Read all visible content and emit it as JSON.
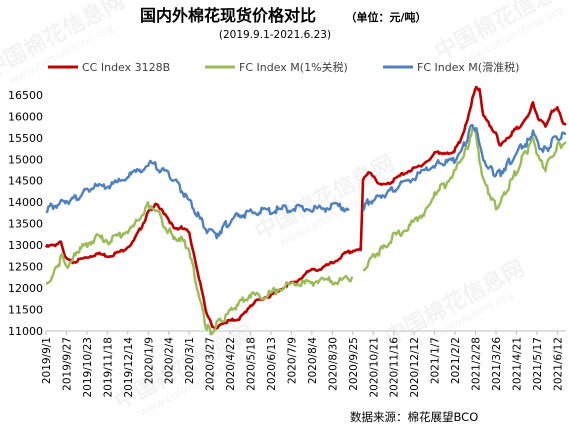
{
  "chart_data": {
    "type": "line",
    "title": "国内外棉花现货价格对比",
    "unit_note": "（单位：元/吨）",
    "subtitle": "(2019.9.1-2021.6.23)",
    "source": "数据来源：棉花展望BCO",
    "watermark": "中国棉花信息网",
    "watermark_url": "www.cottonchina.org",
    "ylim": [
      11000,
      16800
    ],
    "yticks": [
      11000,
      11500,
      12000,
      12500,
      13000,
      13500,
      14000,
      14500,
      15000,
      15500,
      16000,
      16500
    ],
    "x_range": [
      "2019-09-01",
      "2021-06-23"
    ],
    "xticks": [
      "2019/9/1",
      "2019/9/27",
      "2019/10/23",
      "2019/11/18",
      "2019/12/14",
      "2020/1/9",
      "2020/2/4",
      "2020/3/1",
      "2020/3/27",
      "2020/4/22",
      "2020/5/18",
      "2020/6/13",
      "2020/7/9",
      "2020/8/4",
      "2020/8/30",
      "2020/9/25",
      "2020/10/21",
      "2020/11/16",
      "2020/12/12",
      "2021/1/7",
      "2021/2/2",
      "2021/2/28",
      "2021/3/26",
      "2021/4/21",
      "2021/5/17",
      "2021/6/12"
    ],
    "series": [
      {
        "name": "CC Index 3128B",
        "color": "#c00000",
        "points": [
          [
            "2019-09-01",
            12950
          ],
          [
            "2019-09-10",
            13000
          ],
          [
            "2019-09-20",
            13050
          ],
          [
            "2019-09-25",
            12700
          ],
          [
            "2019-10-05",
            12600
          ],
          [
            "2019-10-20",
            12700
          ],
          [
            "2019-11-05",
            12800
          ],
          [
            "2019-11-20",
            12750
          ],
          [
            "2019-12-05",
            12850
          ],
          [
            "2019-12-20",
            13050
          ],
          [
            "2020-01-01",
            13450
          ],
          [
            "2020-01-10",
            13800
          ],
          [
            "2020-01-18",
            13950
          ],
          [
            "2020-02-01",
            13700
          ],
          [
            "2020-02-10",
            13400
          ],
          [
            "2020-02-20",
            13400
          ],
          [
            "2020-03-01",
            13300
          ],
          [
            "2020-03-08",
            12700
          ],
          [
            "2020-03-15",
            12100
          ],
          [
            "2020-03-22",
            11500
          ],
          [
            "2020-03-29",
            11150
          ],
          [
            "2020-04-05",
            11050
          ],
          [
            "2020-04-15",
            11200
          ],
          [
            "2020-04-25",
            11250
          ],
          [
            "2020-05-05",
            11300
          ],
          [
            "2020-05-18",
            11600
          ],
          [
            "2020-06-01",
            11750
          ],
          [
            "2020-06-15",
            11850
          ],
          [
            "2020-07-01",
            12050
          ],
          [
            "2020-07-15",
            12150
          ],
          [
            "2020-08-01",
            12400
          ],
          [
            "2020-08-15",
            12450
          ],
          [
            "2020-09-01",
            12600
          ],
          [
            "2020-09-15",
            12800
          ],
          [
            "2020-09-30",
            12900
          ],
          [
            "2020-10-05",
            12900
          ],
          [
            "2020-10-08",
            14500
          ],
          [
            "2020-10-15",
            14700
          ],
          [
            "2020-10-25",
            14500
          ],
          [
            "2020-11-05",
            14400
          ],
          [
            "2020-11-15",
            14500
          ],
          [
            "2020-12-01",
            14700
          ],
          [
            "2020-12-15",
            14800
          ],
          [
            "2021-01-01",
            15000
          ],
          [
            "2021-01-10",
            15200
          ],
          [
            "2021-01-20",
            15100
          ],
          [
            "2021-02-01",
            15200
          ],
          [
            "2021-02-08",
            15400
          ],
          [
            "2021-02-18",
            15900
          ],
          [
            "2021-02-24",
            16400
          ],
          [
            "2021-03-01",
            16700
          ],
          [
            "2021-03-05",
            16600
          ],
          [
            "2021-03-10",
            16000
          ],
          [
            "2021-03-18",
            15800
          ],
          [
            "2021-03-26",
            15600
          ],
          [
            "2021-04-01",
            15300
          ],
          [
            "2021-04-10",
            15500
          ],
          [
            "2021-04-20",
            15700
          ],
          [
            "2021-04-28",
            15800
          ],
          [
            "2021-05-05",
            16000
          ],
          [
            "2021-05-12",
            16300
          ],
          [
            "2021-05-20",
            15900
          ],
          [
            "2021-05-28",
            15800
          ],
          [
            "2021-06-05",
            16100
          ],
          [
            "2021-06-12",
            16200
          ],
          [
            "2021-06-18",
            15900
          ],
          [
            "2021-06-23",
            15800
          ]
        ]
      },
      {
        "name": "FC Index M(1%关税)",
        "color": "#9bbb59",
        "segments": [
          [
            [
              "2019-09-01",
              12100
            ],
            [
              "2019-09-10",
              12300
            ],
            [
              "2019-09-15",
              12500
            ],
            [
              "2019-09-22",
              12750
            ],
            [
              "2019-09-30",
              12450
            ],
            [
              "2019-10-10",
              12850
            ],
            [
              "2019-10-22",
              13000
            ],
            [
              "2019-11-05",
              13200
            ],
            [
              "2019-11-20",
              13100
            ],
            [
              "2019-12-05",
              13250
            ],
            [
              "2019-12-20",
              13400
            ],
            [
              "2020-01-01",
              13700
            ],
            [
              "2020-01-10",
              13950
            ],
            [
              "2020-01-20",
              13800
            ],
            [
              "2020-02-01",
              13400
            ],
            [
              "2020-02-10",
              13200
            ],
            [
              "2020-02-20",
              13150
            ],
            [
              "2020-03-01",
              12900
            ],
            [
              "2020-03-08",
              12300
            ],
            [
              "2020-03-15",
              11700
            ],
            [
              "2020-03-22",
              11100
            ],
            [
              "2020-03-29",
              11000
            ],
            [
              "2020-04-05",
              11150
            ],
            [
              "2020-04-15",
              11300
            ],
            [
              "2020-04-25",
              11500
            ],
            [
              "2020-05-05",
              11700
            ],
            [
              "2020-05-18",
              11850
            ],
            [
              "2020-06-01",
              11800
            ],
            [
              "2020-06-15",
              11900
            ],
            [
              "2020-07-01",
              12050
            ],
            [
              "2020-07-15",
              12100
            ],
            [
              "2020-08-01",
              12100
            ],
            [
              "2020-08-15",
              12200
            ],
            [
              "2020-09-01",
              12150
            ],
            [
              "2020-09-15",
              12200
            ],
            [
              "2020-09-25",
              12250
            ]
          ],
          [
            [
              "2020-10-08",
              12400
            ],
            [
              "2020-10-15",
              12600
            ],
            [
              "2020-10-25",
              12800
            ],
            [
              "2020-11-05",
              12950
            ],
            [
              "2020-11-15",
              13200
            ],
            [
              "2020-12-01",
              13350
            ],
            [
              "2020-12-15",
              13600
            ],
            [
              "2021-01-01",
              13900
            ],
            [
              "2021-01-10",
              14300
            ],
            [
              "2021-01-20",
              14400
            ],
            [
              "2021-02-01",
              14700
            ],
            [
              "2021-02-10",
              15000
            ],
            [
              "2021-02-18",
              15300
            ],
            [
              "2021-02-24",
              15700
            ],
            [
              "2021-03-01",
              15600
            ],
            [
              "2021-03-05",
              15000
            ],
            [
              "2021-03-10",
              14500
            ],
            [
              "2021-03-18",
              14200
            ],
            [
              "2021-03-26",
              13900
            ],
            [
              "2021-04-01",
              14000
            ],
            [
              "2021-04-10",
              14300
            ],
            [
              "2021-04-20",
              14700
            ],
            [
              "2021-04-28",
              15000
            ],
            [
              "2021-05-05",
              15200
            ],
            [
              "2021-05-12",
              15500
            ],
            [
              "2021-05-20",
              15000
            ],
            [
              "2021-05-28",
              14800
            ],
            [
              "2021-06-05",
              15100
            ],
            [
              "2021-06-12",
              15300
            ],
            [
              "2021-06-23",
              15400
            ]
          ]
        ]
      },
      {
        "name": "FC Index M(滑准税)",
        "color": "#4f81bd",
        "segments": [
          [
            [
              "2019-09-01",
              13850
            ],
            [
              "2019-09-10",
              13900
            ],
            [
              "2019-09-20",
              14000
            ],
            [
              "2019-09-30",
              14050
            ],
            [
              "2019-10-10",
              14100
            ],
            [
              "2019-10-20",
              14250
            ],
            [
              "2019-11-01",
              14350
            ],
            [
              "2019-11-15",
              14350
            ],
            [
              "2019-12-01",
              14450
            ],
            [
              "2019-12-15",
              14600
            ],
            [
              "2020-01-01",
              14800
            ],
            [
              "2020-01-15",
              14900
            ],
            [
              "2020-01-25",
              14750
            ],
            [
              "2020-02-05",
              14650
            ],
            [
              "2020-02-15",
              14450
            ],
            [
              "2020-02-25",
              14150
            ],
            [
              "2020-03-05",
              13900
            ],
            [
              "2020-03-15",
              13600
            ],
            [
              "2020-03-25",
              13300
            ],
            [
              "2020-04-05",
              13250
            ],
            [
              "2020-04-15",
              13450
            ],
            [
              "2020-04-25",
              13600
            ],
            [
              "2020-05-05",
              13700
            ],
            [
              "2020-05-18",
              13750
            ],
            [
              "2020-06-01",
              13800
            ],
            [
              "2020-06-15",
              13800
            ],
            [
              "2020-07-01",
              13850
            ],
            [
              "2020-07-15",
              13850
            ],
            [
              "2020-08-01",
              13850
            ],
            [
              "2020-08-15",
              13850
            ],
            [
              "2020-09-01",
              13900
            ],
            [
              "2020-09-20",
              13850
            ]
          ],
          [
            [
              "2020-10-08",
              13900
            ],
            [
              "2020-10-15",
              14000
            ],
            [
              "2020-10-25",
              14100
            ],
            [
              "2020-11-05",
              14200
            ],
            [
              "2020-11-15",
              14300
            ],
            [
              "2020-12-01",
              14450
            ],
            [
              "2020-12-15",
              14600
            ],
            [
              "2021-01-01",
              14800
            ],
            [
              "2021-01-10",
              14900
            ],
            [
              "2021-01-20",
              14900
            ],
            [
              "2021-02-01",
              15000
            ],
            [
              "2021-02-10",
              15200
            ],
            [
              "2021-02-18",
              15500
            ],
            [
              "2021-02-24",
              15850
            ],
            [
              "2021-03-01",
              15700
            ],
            [
              "2021-03-05",
              15300
            ],
            [
              "2021-03-10",
              15000
            ],
            [
              "2021-03-18",
              14800
            ],
            [
              "2021-03-26",
              14600
            ],
            [
              "2021-04-01",
              14700
            ],
            [
              "2021-04-10",
              14900
            ],
            [
              "2021-04-20",
              15100
            ],
            [
              "2021-04-28",
              15300
            ],
            [
              "2021-05-05",
              15400
            ],
            [
              "2021-05-12",
              15600
            ],
            [
              "2021-05-20",
              15300
            ],
            [
              "2021-05-28",
              15200
            ],
            [
              "2021-06-05",
              15400
            ],
            [
              "2021-06-12",
              15500
            ],
            [
              "2021-06-23",
              15600
            ]
          ]
        ]
      }
    ],
    "legend_placement": "top",
    "grid": false
  }
}
